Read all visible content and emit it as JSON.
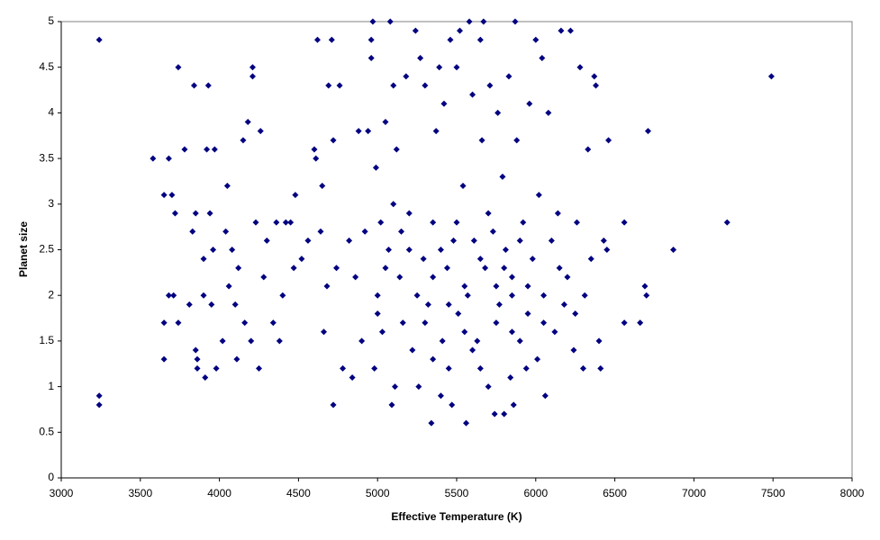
{
  "chart_data": {
    "type": "scatter",
    "x_label": "Effective Temperature (K)",
    "y_label": "Planet size",
    "color": "#000080",
    "grid": false,
    "xlim": [
      3000,
      8000
    ],
    "ylim": [
      0,
      5
    ],
    "xticks": [
      3000,
      3500,
      4000,
      4500,
      5000,
      5500,
      6000,
      6500,
      7000,
      7500,
      8000
    ],
    "yticks": [
      0,
      0.5,
      1,
      1.5,
      2,
      2.5,
      3,
      3.5,
      4,
      4.5,
      5
    ],
    "x": [
      3240,
      3240,
      3240,
      3580,
      3650,
      3650,
      3650,
      3680,
      3700,
      3680,
      3710,
      3720,
      3740,
      3740,
      3780,
      3810,
      3830,
      3840,
      3850,
      3850,
      3860,
      3860,
      3900,
      3900,
      3910,
      3920,
      3930,
      3940,
      3950,
      3960,
      3970,
      3980,
      4020,
      4040,
      4050,
      4060,
      4080,
      4100,
      4110,
      4120,
      4150,
      4160,
      4180,
      4200,
      4210,
      4210,
      4230,
      4250,
      4260,
      4280,
      4300,
      4340,
      4360,
      4380,
      4400,
      4420,
      4450,
      4470,
      4480,
      4520,
      4560,
      4600,
      4610,
      4620,
      4640,
      4650,
      4660,
      4680,
      4690,
      4710,
      4720,
      4720,
      4740,
      4760,
      4780,
      4820,
      4840,
      4860,
      4880,
      4900,
      4920,
      4940,
      4960,
      4960,
      4970,
      4980,
      4990,
      5000,
      5020,
      5030,
      5050,
      5070,
      5080,
      5090,
      5100,
      5110,
      5120,
      5140,
      5160,
      5180,
      5200,
      5220,
      5240,
      5260,
      5270,
      5290,
      5300,
      5320,
      5340,
      5350,
      5370,
      5390,
      5400,
      5410,
      5420,
      5440,
      5460,
      5470,
      5480,
      5500,
      5510,
      5520,
      5540,
      5560,
      5570,
      5580,
      5600,
      5610,
      5630,
      5650,
      5660,
      5670,
      5680,
      5700,
      5710,
      5730,
      5740,
      5760,
      5770,
      5790,
      5800,
      5810,
      5830,
      5840,
      5850,
      5860,
      5870,
      5880,
      5900,
      5920,
      5940,
      5960,
      5980,
      6000,
      6010,
      6020,
      6040,
      6050,
      6060,
      6080,
      6100,
      6120,
      6140,
      6160,
      6180,
      6200,
      6220,
      6240,
      6260,
      6280,
      6300,
      6310,
      6330,
      6350,
      6370,
      6380,
      6400,
      6410,
      6430,
      6450,
      6460,
      6560,
      6560,
      6660,
      6690,
      6700,
      6710,
      6870,
      7210,
      7490,
      5250,
      5350,
      5450,
      5550,
      5650,
      5750,
      5850,
      5950,
      5300,
      5400,
      5500,
      5600,
      5700,
      5800,
      5900,
      5150,
      5050,
      5000,
      5100,
      5200,
      5350,
      5450,
      5550,
      5650,
      5750,
      5850,
      5950,
      6050,
      6150,
      6250
    ],
    "y": [
      4.8,
      0.9,
      0.8,
      3.5,
      3.1,
      1.7,
      1.3,
      3.5,
      3.1,
      2.0,
      2.0,
      2.9,
      4.5,
      1.7,
      3.6,
      1.9,
      2.7,
      4.3,
      2.9,
      1.4,
      1.3,
      1.2,
      2.4,
      2.0,
      1.1,
      3.6,
      4.3,
      2.9,
      1.9,
      2.5,
      3.6,
      1.2,
      1.5,
      2.7,
      3.2,
      2.1,
      2.5,
      1.9,
      1.3,
      2.3,
      3.7,
      1.7,
      3.9,
      1.5,
      4.5,
      4.4,
      2.8,
      1.2,
      3.8,
      2.2,
      2.6,
      1.7,
      2.8,
      1.5,
      2.0,
      2.8,
      2.8,
      2.3,
      3.1,
      2.4,
      2.6,
      3.6,
      3.5,
      4.8,
      2.7,
      3.2,
      1.6,
      2.1,
      4.3,
      4.8,
      0.8,
      3.7,
      2.3,
      4.3,
      1.2,
      2.6,
      1.1,
      2.2,
      3.8,
      1.5,
      2.7,
      3.8,
      4.8,
      4.6,
      5.0,
      1.2,
      3.4,
      2.0,
      2.8,
      1.6,
      3.9,
      2.5,
      5.0,
      0.8,
      4.3,
      1.0,
      3.6,
      2.2,
      1.7,
      4.4,
      2.9,
      1.4,
      4.9,
      1.0,
      4.6,
      2.4,
      4.3,
      1.9,
      0.6,
      2.8,
      3.8,
      4.5,
      0.9,
      1.5,
      4.1,
      2.3,
      4.8,
      0.8,
      2.6,
      4.5,
      1.8,
      4.9,
      3.2,
      0.6,
      2.0,
      5.0,
      4.2,
      2.6,
      1.5,
      4.8,
      3.7,
      5.0,
      2.3,
      1.0,
      4.3,
      2.7,
      0.7,
      4.0,
      1.9,
      3.3,
      0.7,
      2.5,
      4.4,
      1.1,
      2.2,
      0.8,
      5.0,
      3.7,
      1.5,
      2.8,
      1.2,
      4.1,
      2.4,
      4.8,
      1.3,
      3.1,
      4.6,
      2.0,
      0.9,
      4.0,
      2.6,
      1.6,
      2.9,
      4.9,
      1.9,
      2.2,
      4.9,
      1.4,
      2.8,
      4.5,
      1.2,
      2.0,
      3.6,
      2.4,
      4.4,
      4.3,
      1.5,
      1.2,
      2.6,
      2.5,
      3.7,
      1.7,
      2.8,
      1.7,
      2.1,
      2.0,
      3.8,
      2.5,
      2.8,
      4.4,
      2.0,
      2.2,
      1.9,
      2.1,
      2.4,
      1.7,
      2.0,
      1.8,
      1.7,
      2.5,
      2.8,
      1.4,
      2.9,
      2.3,
      2.6,
      2.7,
      2.3,
      1.8,
      3.0,
      2.5,
      1.3,
      1.2,
      1.6,
      1.2,
      2.1,
      1.6,
      2.1,
      1.7,
      2.3,
      1.8
    ]
  }
}
